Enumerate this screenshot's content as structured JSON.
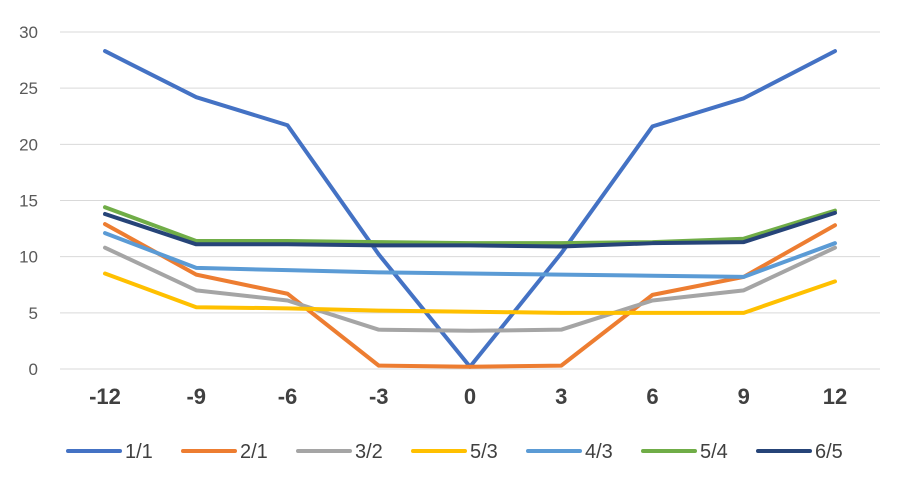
{
  "chart_data": {
    "type": "line",
    "x": [
      "-12",
      "-9",
      "-6",
      "-3",
      "0",
      "3",
      "6",
      "9",
      "12"
    ],
    "ylim": [
      0,
      30
    ],
    "yticks": [
      "0",
      "5",
      "10",
      "15",
      "20",
      "25",
      "30"
    ],
    "grid": true,
    "legend_position": "bottom",
    "series": [
      {
        "name": "1/1",
        "color": "#4472C4",
        "values": [
          28.3,
          24.2,
          21.7,
          10.2,
          0.2,
          10.3,
          21.6,
          24.1,
          28.3
        ]
      },
      {
        "name": "2/1",
        "color": "#ED7D31",
        "values": [
          12.9,
          8.4,
          6.7,
          0.3,
          0.2,
          0.3,
          6.6,
          8.2,
          12.8
        ]
      },
      {
        "name": "3/2",
        "color": "#A5A5A5",
        "values": [
          10.8,
          7.0,
          6.1,
          3.5,
          3.4,
          3.5,
          6.1,
          7.0,
          10.8
        ]
      },
      {
        "name": "5/3",
        "color": "#FFC000",
        "values": [
          8.5,
          5.5,
          5.4,
          5.2,
          5.1,
          5.0,
          5.0,
          5.0,
          7.8
        ]
      },
      {
        "name": "4/3",
        "color": "#5B9BD5",
        "values": [
          12.1,
          9.0,
          8.8,
          8.6,
          8.5,
          8.4,
          8.3,
          8.2,
          11.2
        ]
      },
      {
        "name": "5/4",
        "color": "#70AD47",
        "values": [
          14.4,
          11.4,
          11.4,
          11.3,
          11.2,
          11.2,
          11.3,
          11.6,
          14.1
        ]
      },
      {
        "name": "6/5",
        "color": "#264478",
        "values": [
          13.8,
          11.1,
          11.1,
          11.0,
          11.0,
          10.9,
          11.2,
          11.3,
          13.9
        ]
      }
    ]
  }
}
